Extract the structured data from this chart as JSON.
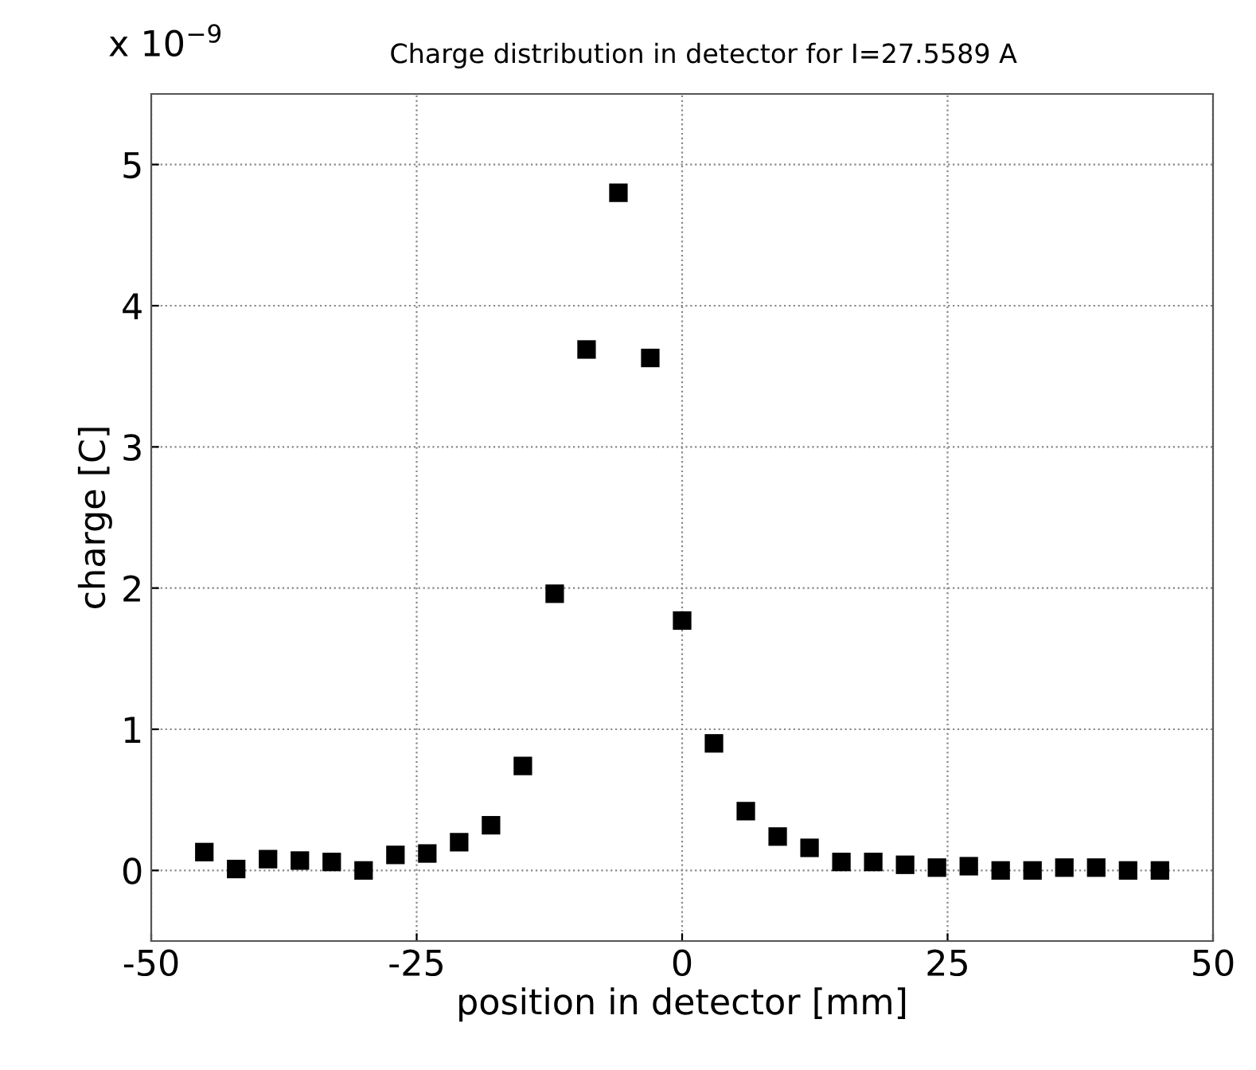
{
  "chart_data": {
    "type": "scatter",
    "title": "Charge distribution in detector for I=27.5589 A",
    "xlabel": "position in detector [mm]",
    "ylabel": "charge [C]",
    "annotations": [
      "x 10$^{−9}$"
    ],
    "x": [
      -45,
      -42,
      -39,
      -36,
      -33,
      -30,
      -27,
      -24,
      -21,
      -18,
      -15,
      -12,
      -9,
      -6,
      -3,
      0,
      3,
      6,
      9,
      12,
      15,
      18,
      21,
      24,
      27,
      30,
      33,
      36,
      39,
      42,
      45
    ],
    "series": [
      {
        "color": "#000000",
        "values": [
          0.13,
          0.01,
          0.08,
          0.07,
          0.06,
          0.0,
          0.11,
          0.12,
          0.2,
          0.32,
          0.74,
          1.96,
          3.69,
          4.8,
          3.63,
          1.77,
          0.9,
          0.42,
          0.24,
          0.16,
          0.06,
          0.06,
          0.04,
          0.02,
          0.03,
          0.0,
          0.0,
          0.02,
          0.02,
          0.0,
          0.0
        ]
      }
    ],
    "xlim": [
      -50,
      50
    ],
    "xticks": [
      -50,
      -25,
      0,
      25,
      50
    ],
    "ylim": [
      -0.5,
      5.5
    ],
    "yticks": [
      0,
      1,
      2,
      3,
      4,
      5
    ],
    "grid": true,
    "marker": "square"
  }
}
